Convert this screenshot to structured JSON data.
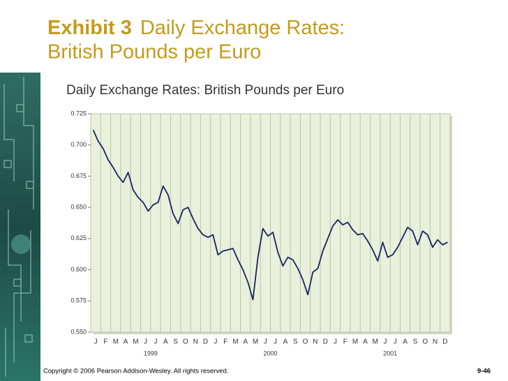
{
  "slide": {
    "exhibit": "Exhibit 3",
    "title_line1": "Daily Exchange Rates:",
    "title_line2": "British Pounds per Euro",
    "copyright": "Copyright © 2006 Pearson Addison-Wesley. All rights reserved.",
    "page": "9-46"
  },
  "chart_data": {
    "type": "line",
    "title": "Daily Exchange Rates: British Pounds per Euro",
    "categories": [
      "J",
      null,
      "F",
      null,
      "M",
      null,
      "A",
      null,
      "M",
      null,
      "J",
      null,
      "J",
      null,
      "A",
      null,
      "S",
      null,
      "O",
      null,
      "N",
      null,
      "D",
      null,
      "J",
      null,
      "F",
      null,
      "M",
      null,
      "A",
      null,
      "M",
      null,
      "J",
      null,
      "J",
      null,
      "A",
      null,
      "S",
      null,
      "O",
      null,
      "N",
      null,
      "D",
      null,
      "J",
      null,
      "F",
      null,
      "M",
      null,
      "A",
      null,
      "M",
      null,
      "J",
      null,
      "J",
      null,
      "A",
      null,
      "S",
      null,
      "O",
      null,
      "N",
      null,
      "D",
      null
    ],
    "years": [
      "1999",
      "2000",
      "2001"
    ],
    "values": [
      0.712,
      0.703,
      0.697,
      0.688,
      0.682,
      0.675,
      0.67,
      0.678,
      0.664,
      0.658,
      0.654,
      0.647,
      0.652,
      0.654,
      0.667,
      0.66,
      0.645,
      0.637,
      0.648,
      0.65,
      0.641,
      0.633,
      0.628,
      0.626,
      0.628,
      0.612,
      0.615,
      0.616,
      0.617,
      0.608,
      0.6,
      0.59,
      0.576,
      0.61,
      0.633,
      0.627,
      0.63,
      0.614,
      0.603,
      0.61,
      0.608,
      0.601,
      0.592,
      0.58,
      0.598,
      0.601,
      0.615,
      0.625,
      0.635,
      0.64,
      0.636,
      0.638,
      0.632,
      0.628,
      0.629,
      0.623,
      0.616,
      0.607,
      0.622,
      0.61,
      0.612,
      0.618,
      0.626,
      0.634,
      0.631,
      0.62,
      0.631,
      0.628,
      0.618,
      0.624,
      0.62,
      0.622
    ],
    "color": "#1c2362",
    "ylim": [
      0.55,
      0.725
    ],
    "yticks": [
      {
        "value": 0.55,
        "label": "0.550"
      },
      0.575,
      {
        "value": 0.6,
        "label": "0.600"
      },
      0.625,
      {
        "value": 0.65,
        "label": "0.650"
      },
      0.675,
      {
        "value": 0.7,
        "label": "0.700"
      },
      0.725
    ]
  }
}
